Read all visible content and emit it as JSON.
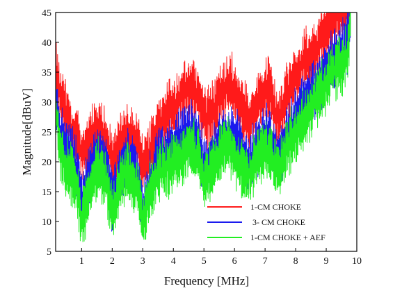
{
  "chart_data": {
    "type": "line",
    "title": "",
    "xlabel": "Frequency  [MHz]",
    "ylabel": "Magnitude[dBuV]",
    "xlim": [
      0.15,
      10
    ],
    "ylim": [
      5,
      45
    ],
    "xticks": [
      1,
      2,
      3,
      4,
      5,
      6,
      7,
      8,
      9,
      10
    ],
    "yticks": [
      5,
      10,
      15,
      20,
      25,
      30,
      35,
      40,
      45
    ],
    "grid": false,
    "legend_position": "bottom-right",
    "series": [
      {
        "name": "1-CM CHOKE",
        "color": "#ff1a1a",
        "x": [
          0.15,
          0.3,
          0.5,
          0.7,
          0.9,
          1.0,
          1.2,
          1.5,
          1.8,
          2.0,
          2.2,
          2.5,
          2.8,
          3.0,
          3.2,
          3.5,
          3.8,
          4.0,
          4.3,
          4.6,
          4.8,
          5.0,
          5.3,
          5.6,
          5.9,
          6.2,
          6.5,
          6.8,
          7.1,
          7.4,
          7.7,
          8.0,
          8.3,
          8.6,
          8.9,
          9.2,
          9.5,
          9.7,
          9.8
        ],
        "y": [
          36,
          31,
          28,
          25,
          23,
          21,
          23,
          26,
          24,
          20,
          22,
          25,
          23,
          19,
          21,
          25,
          28,
          29,
          31,
          33,
          31,
          27,
          28,
          32,
          33,
          29,
          27,
          30,
          33,
          27,
          31,
          35,
          37,
          38,
          41,
          44,
          46,
          45,
          47
        ]
      },
      {
        "name": " 3- CM CHOKE",
        "color": "#1a1aee",
        "x": [
          0.15,
          0.3,
          0.5,
          0.7,
          0.9,
          1.0,
          1.2,
          1.5,
          1.8,
          2.0,
          2.2,
          2.5,
          2.8,
          3.0,
          3.2,
          3.5,
          3.8,
          4.0,
          4.3,
          4.6,
          4.8,
          5.0,
          5.3,
          5.6,
          5.9,
          6.2,
          6.5,
          6.8,
          7.1,
          7.4,
          7.7,
          8.0,
          8.3,
          8.6,
          8.9,
          9.2,
          9.5,
          9.7,
          9.8
        ],
        "y": [
          31,
          24,
          22,
          21,
          18,
          13,
          17,
          21,
          20,
          13,
          17,
          21,
          19,
          11,
          16,
          20,
          22,
          23,
          24,
          25,
          24,
          19,
          21,
          24,
          25,
          22,
          20,
          23,
          25,
          20,
          24,
          27,
          30,
          32,
          34,
          37,
          38,
          40,
          45
        ]
      },
      {
        "name": "1-CM CHOKE + AEF",
        "color": "#22ee22",
        "x": [
          0.15,
          0.3,
          0.5,
          0.7,
          0.9,
          1.0,
          1.2,
          1.5,
          1.8,
          2.0,
          2.2,
          2.5,
          2.8,
          3.0,
          3.2,
          3.5,
          3.8,
          4.0,
          4.3,
          4.6,
          4.8,
          5.0,
          5.3,
          5.6,
          5.9,
          6.2,
          6.5,
          6.8,
          7.1,
          7.4,
          7.7,
          8.0,
          8.3,
          8.6,
          8.9,
          9.2,
          9.5,
          9.7,
          9.8
        ],
        "y": [
          30,
          21,
          19,
          18,
          14,
          10,
          14,
          19,
          17,
          11,
          15,
          19,
          16,
          10,
          14,
          18,
          19,
          20,
          21,
          22,
          21,
          17,
          19,
          22,
          22,
          19,
          18,
          21,
          22,
          18,
          22,
          25,
          27,
          30,
          32,
          35,
          36,
          38,
          44
        ]
      }
    ]
  }
}
